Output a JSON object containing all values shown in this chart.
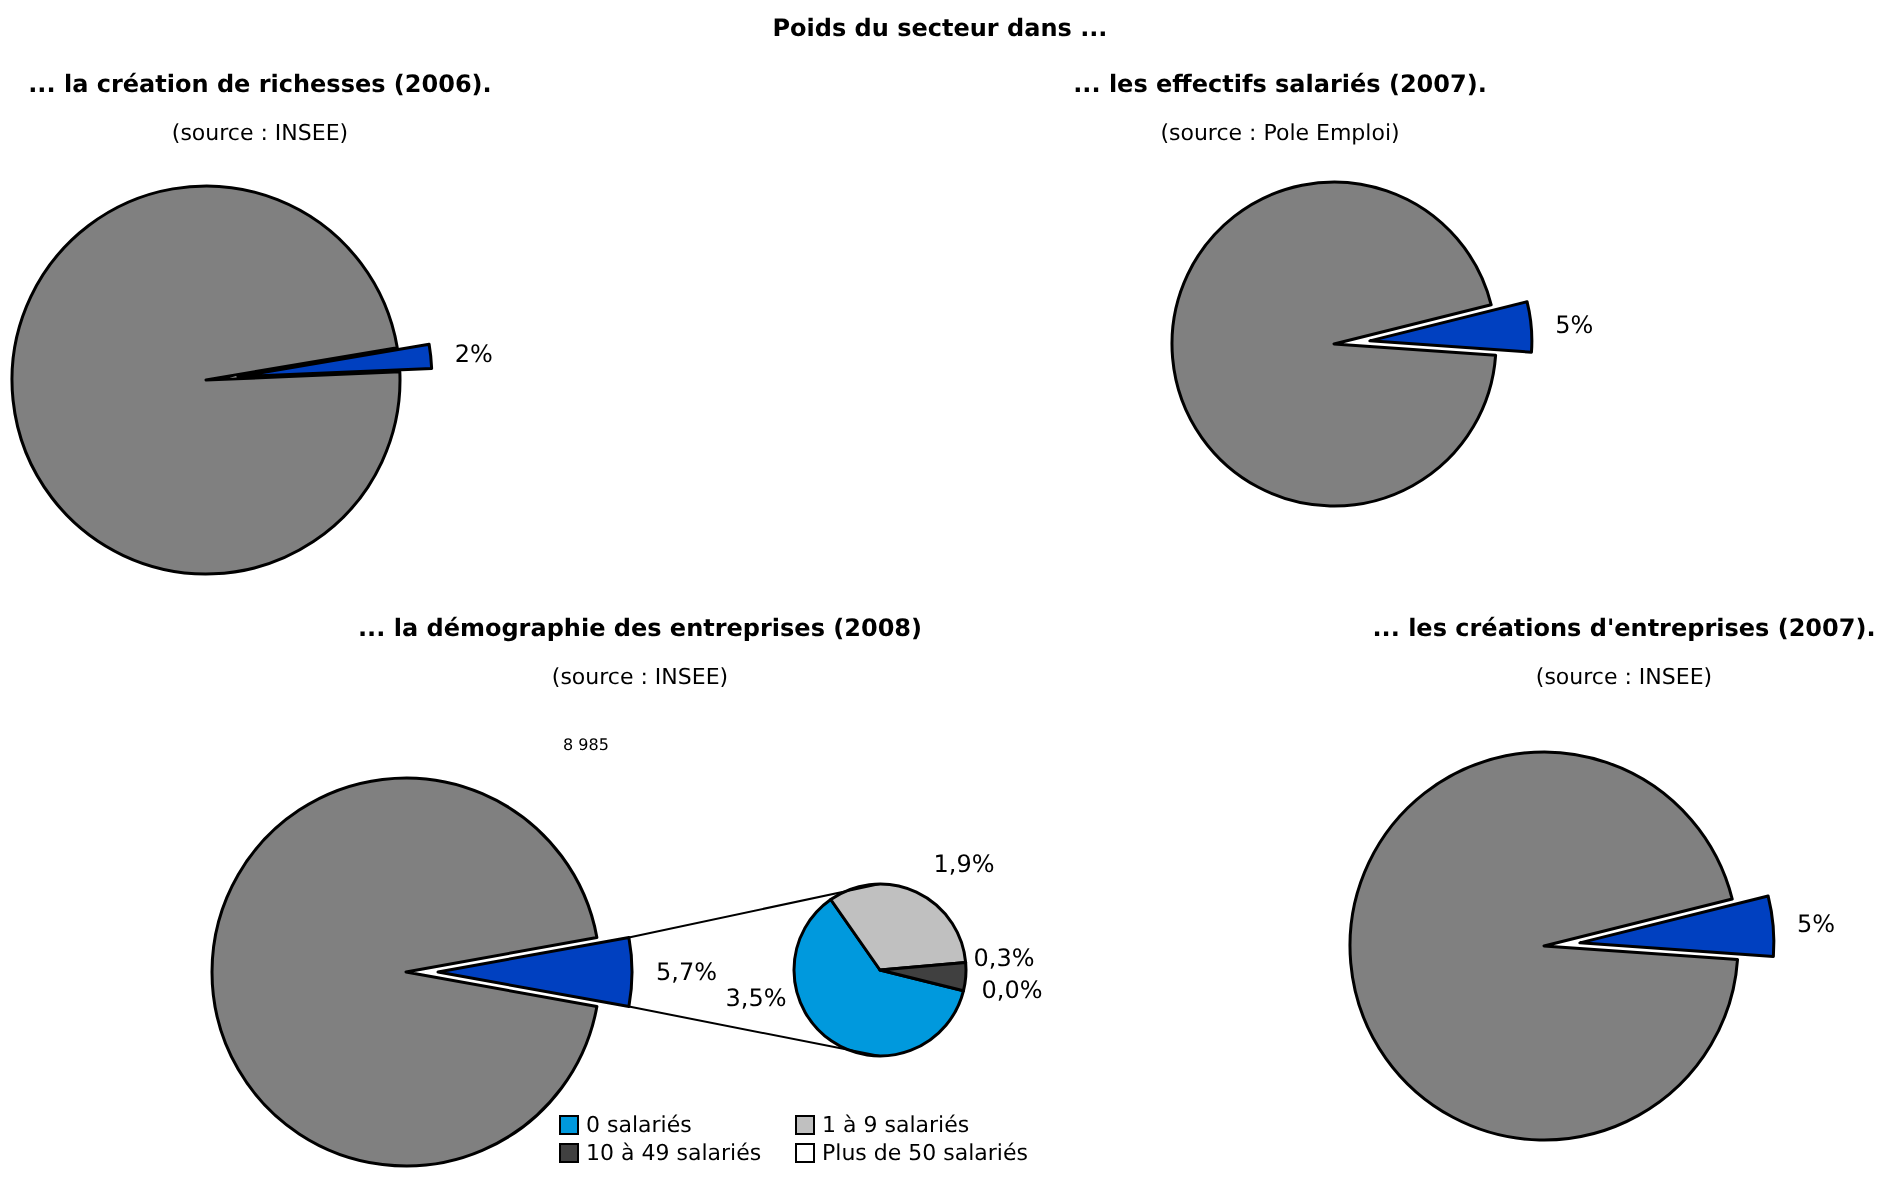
{
  "chart_data": [
    {
      "type": "other",
      "title": "Poids du secteur dans ..."
    },
    {
      "type": "pie",
      "title": "... la création de richesses (2006).",
      "annotations": [
        "(source : INSEE)"
      ],
      "categories": [
        null,
        null
      ],
      "values": [
        2,
        98
      ],
      "colors": [
        "#0040c0",
        "#808080"
      ],
      "value_labels": [
        "2%",
        null
      ]
    },
    {
      "type": "pie",
      "title": "... les effectifs salariés (2007).",
      "annotations": [
        "(source : Pole Emploi)"
      ],
      "categories": [
        null,
        null
      ],
      "values": [
        5,
        95
      ],
      "colors": [
        "#0040c0",
        "#808080"
      ],
      "value_labels": [
        "5%",
        null
      ]
    },
    {
      "type": "pie",
      "title": "... la démographie des entreprises (2008)",
      "annotations": [
        "(source : INSEE)",
        "8 985"
      ],
      "categories": [
        null,
        null
      ],
      "values": [
        5.7,
        94.3
      ],
      "colors": [
        "#0040c0",
        "#808080"
      ],
      "value_labels": [
        "5,7%",
        null
      ]
    },
    {
      "type": "pie",
      "categories": [
        "0 salariés",
        "1 à 9 salariés",
        "10 à 49 salariés",
        "Plus de 50 salariés"
      ],
      "values": [
        3.5,
        1.9,
        0.3,
        0.0
      ],
      "colors": [
        "#0099dd",
        "#c0c0c0",
        "#404040",
        "#ffffff"
      ],
      "value_labels": [
        "3,5%",
        "1,9%",
        "0,3%",
        "0,0%"
      ],
      "legend": "bottom"
    },
    {
      "type": "pie",
      "title": "... les créations d'entreprises (2007).",
      "annotations": [
        "(source : INSEE)"
      ],
      "categories": [
        null,
        null
      ],
      "values": [
        5,
        95
      ],
      "colors": [
        "#0040c0",
        "#808080"
      ],
      "value_labels": [
        "5%",
        null
      ]
    }
  ]
}
